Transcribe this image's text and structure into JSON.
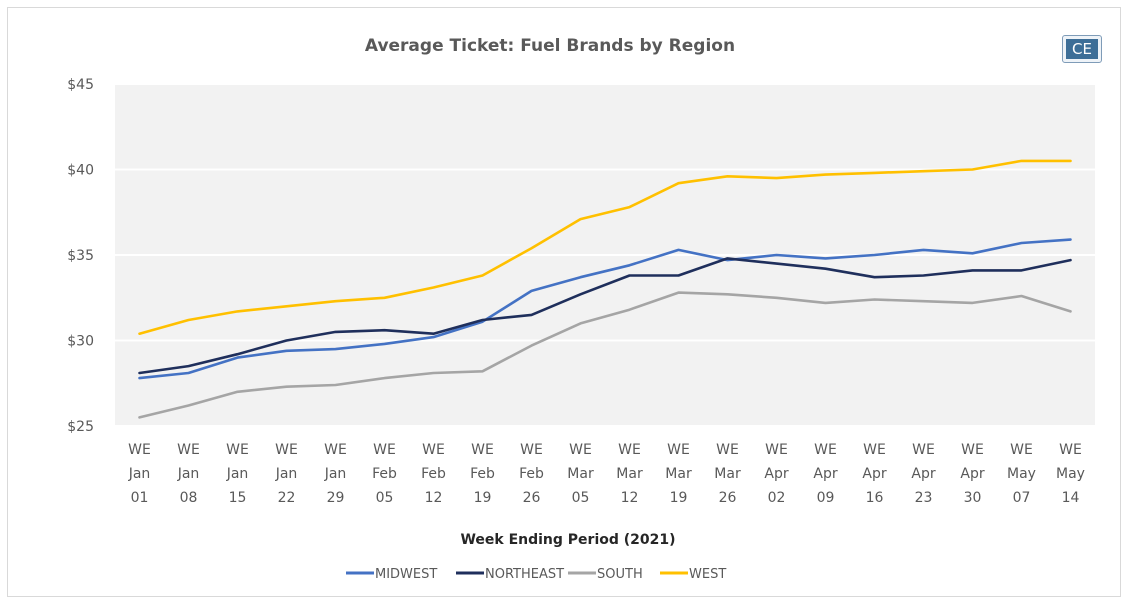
{
  "chart_data": {
    "type": "line",
    "title": "Average Ticket: Fuel Brands by Region",
    "xlabel": "Week Ending Period (2021)",
    "ylabel": "",
    "ylim": [
      25,
      45
    ],
    "yticks": [
      "$25",
      "$30",
      "$35",
      "$40",
      "$45"
    ],
    "ytick_values": [
      25,
      30,
      35,
      40,
      45
    ],
    "categories": [
      [
        "WE",
        "Jan",
        "01"
      ],
      [
        "WE",
        "Jan",
        "08"
      ],
      [
        "WE",
        "Jan",
        "15"
      ],
      [
        "WE",
        "Jan",
        "22"
      ],
      [
        "WE",
        "Jan",
        "29"
      ],
      [
        "WE",
        "Feb",
        "05"
      ],
      [
        "WE",
        "Feb",
        "12"
      ],
      [
        "WE",
        "Feb",
        "19"
      ],
      [
        "WE",
        "Feb",
        "26"
      ],
      [
        "WE",
        "Mar",
        "05"
      ],
      [
        "WE",
        "Mar",
        "12"
      ],
      [
        "WE",
        "Mar",
        "19"
      ],
      [
        "WE",
        "Mar",
        "26"
      ],
      [
        "WE",
        "Apr",
        "02"
      ],
      [
        "WE",
        "Apr",
        "09"
      ],
      [
        "WE",
        "Apr",
        "16"
      ],
      [
        "WE",
        "Apr",
        "23"
      ],
      [
        "WE",
        "Apr",
        "30"
      ],
      [
        "WE",
        "May",
        "07"
      ],
      [
        "WE",
        "May",
        "14"
      ]
    ],
    "grid": true,
    "legend_position": "bottom",
    "series": [
      {
        "name": "MIDWEST",
        "color": "#4472c4",
        "values": [
          27.8,
          28.1,
          29.0,
          29.4,
          29.5,
          29.8,
          30.2,
          31.1,
          32.9,
          33.7,
          34.4,
          35.3,
          34.7,
          35.0,
          34.8,
          35.0,
          35.3,
          35.1,
          35.7,
          35.9
        ]
      },
      {
        "name": "NORTHEAST",
        "color": "#1f2f5c",
        "values": [
          28.1,
          28.5,
          29.2,
          30.0,
          30.5,
          30.6,
          30.4,
          31.2,
          31.5,
          32.7,
          33.8,
          33.8,
          34.8,
          34.5,
          34.2,
          33.7,
          33.8,
          34.1,
          34.1,
          34.7
        ]
      },
      {
        "name": "SOUTH",
        "color": "#a5a5a5",
        "values": [
          25.5,
          26.2,
          27.0,
          27.3,
          27.4,
          27.8,
          28.1,
          28.2,
          29.7,
          31.0,
          31.8,
          32.8,
          32.7,
          32.5,
          32.2,
          32.4,
          32.3,
          32.2,
          32.6,
          31.7
        ]
      },
      {
        "name": "WEST",
        "color": "#ffc000",
        "values": [
          30.4,
          31.2,
          31.7,
          32.0,
          32.3,
          32.5,
          33.1,
          33.8,
          35.4,
          37.1,
          37.8,
          39.2,
          39.6,
          39.5,
          39.7,
          39.8,
          39.9,
          40.0,
          40.5,
          40.5
        ]
      }
    ]
  },
  "badge": {
    "text": "CE"
  }
}
